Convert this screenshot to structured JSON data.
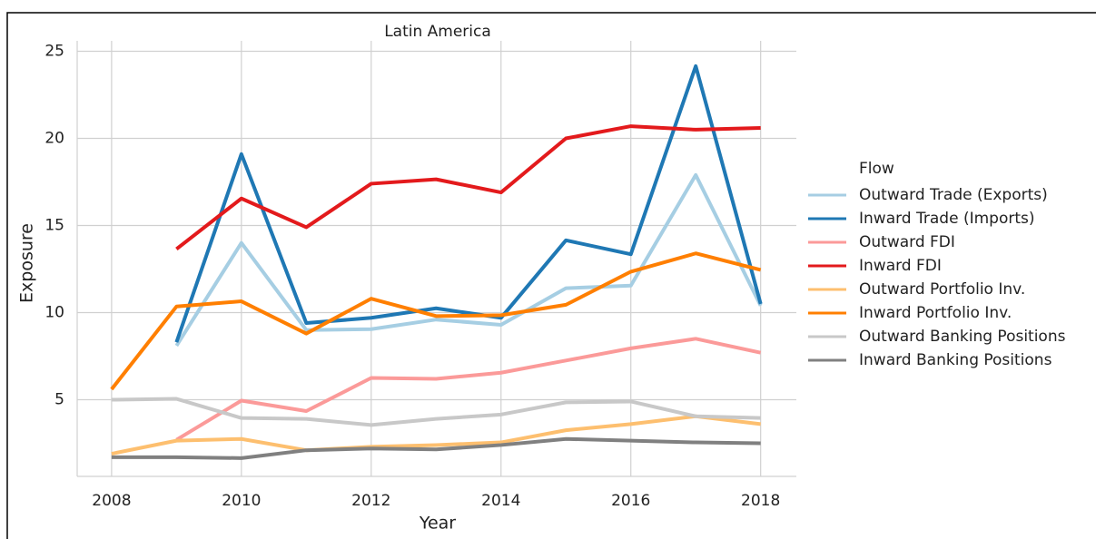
{
  "chart_data": {
    "type": "line",
    "title": "Latin America",
    "xlabel": "Year",
    "ylabel": "Exposure",
    "x": [
      2008,
      2009,
      2010,
      2011,
      2012,
      2013,
      2014,
      2015,
      2016,
      2017,
      2018
    ],
    "xlim": [
      2007.47,
      2018.55
    ],
    "xticks": [
      2008,
      2010,
      2012,
      2014,
      2016,
      2018
    ],
    "ylim": [
      0.6,
      25.6
    ],
    "yticks": [
      5,
      10,
      15,
      20,
      25
    ],
    "grid": true,
    "legend_title": "Flow",
    "legend_position": "right",
    "series": [
      {
        "name": "Outward Trade (Exports)",
        "color": "#a6cee3",
        "values": [
          null,
          8.1,
          14.0,
          9.0,
          9.05,
          9.6,
          9.3,
          11.4,
          11.55,
          17.9,
          10.4
        ]
      },
      {
        "name": "Inward Trade (Imports)",
        "color": "#1f78b4",
        "values": [
          null,
          8.3,
          19.1,
          9.4,
          9.7,
          10.25,
          9.7,
          14.15,
          13.35,
          24.15,
          10.5
        ]
      },
      {
        "name": "Outward FDI",
        "color": "#fb9a99",
        "values": [
          null,
          2.7,
          4.95,
          4.35,
          6.25,
          6.2,
          6.55,
          7.25,
          7.95,
          8.5,
          7.7
        ]
      },
      {
        "name": "Inward FDI",
        "color": "#e31a1c",
        "values": [
          null,
          13.65,
          16.55,
          14.9,
          17.4,
          17.65,
          16.9,
          20.0,
          20.7,
          20.5,
          20.6
        ]
      },
      {
        "name": "Outward Portfolio Inv.",
        "color": "#fdbf6f",
        "values": [
          1.9,
          2.65,
          2.75,
          2.1,
          2.3,
          2.4,
          2.55,
          3.25,
          3.6,
          4.05,
          3.6
        ]
      },
      {
        "name": "Inward Portfolio Inv.",
        "color": "#ff7f00",
        "values": [
          5.6,
          10.35,
          10.65,
          8.8,
          10.8,
          9.8,
          9.85,
          10.45,
          12.35,
          13.4,
          12.45
        ]
      },
      {
        "name": "Outward Banking Positions",
        "color": "#c8c8c8",
        "values": [
          5.0,
          5.05,
          3.95,
          3.9,
          3.55,
          3.9,
          4.15,
          4.85,
          4.9,
          4.05,
          3.95
        ]
      },
      {
        "name": "Inward Banking Positions",
        "color": "#808080",
        "values": [
          1.7,
          1.7,
          1.65,
          2.1,
          2.2,
          2.15,
          2.4,
          2.75,
          2.65,
          2.55,
          2.5
        ]
      }
    ]
  }
}
